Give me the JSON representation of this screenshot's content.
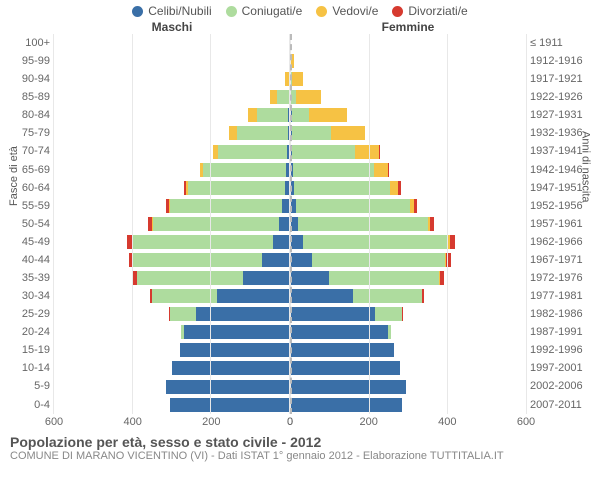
{
  "legend": [
    {
      "label": "Celibi/Nubili",
      "color": "#3a6fa7"
    },
    {
      "label": "Coniugati/e",
      "color": "#aedc9e"
    },
    {
      "label": "Vedovi/e",
      "color": "#f6c244"
    },
    {
      "label": "Divorziati/e",
      "color": "#d63a2f"
    }
  ],
  "header_male": "Maschi",
  "header_female": "Femmine",
  "axis_left_title": "Fasce di età",
  "axis_right_title": "Anni di nascita",
  "age_labels": [
    "100+",
    "95-99",
    "90-94",
    "85-89",
    "80-84",
    "75-79",
    "70-74",
    "65-69",
    "60-64",
    "55-59",
    "50-54",
    "45-49",
    "40-44",
    "35-39",
    "30-34",
    "25-29",
    "20-24",
    "15-19",
    "10-14",
    "5-9",
    "0-4"
  ],
  "year_labels": [
    "≤ 1911",
    "1912-1916",
    "1917-1921",
    "1922-1926",
    "1927-1931",
    "1932-1936",
    "1937-1941",
    "1942-1946",
    "1947-1951",
    "1952-1956",
    "1957-1961",
    "1962-1966",
    "1967-1971",
    "1972-1976",
    "1977-1981",
    "1982-1986",
    "1987-1991",
    "1992-1996",
    "1997-2001",
    "2002-2006",
    "2007-2011"
  ],
  "x_max": 600,
  "x_ticks": [
    0,
    200,
    400,
    600
  ],
  "colors": {
    "celibi": "#3a6fa7",
    "coniugati": "#aedc9e",
    "vedovi": "#f6c244",
    "divorziati": "#d63a2f",
    "grid": "#e8e8e8",
    "centerline": "#bbbbbb"
  },
  "male": [
    {
      "c": 0,
      "m": 0,
      "v": 0,
      "d": 0
    },
    {
      "c": 0,
      "m": 0,
      "v": 3,
      "d": 0
    },
    {
      "c": 1,
      "m": 2,
      "v": 11,
      "d": 0
    },
    {
      "c": 3,
      "m": 30,
      "v": 18,
      "d": 0
    },
    {
      "c": 4,
      "m": 80,
      "v": 22,
      "d": 0
    },
    {
      "c": 6,
      "m": 130,
      "v": 18,
      "d": 0
    },
    {
      "c": 8,
      "m": 175,
      "v": 14,
      "d": 0
    },
    {
      "c": 10,
      "m": 210,
      "v": 8,
      "d": 2
    },
    {
      "c": 14,
      "m": 245,
      "v": 5,
      "d": 6
    },
    {
      "c": 20,
      "m": 285,
      "v": 3,
      "d": 8
    },
    {
      "c": 28,
      "m": 320,
      "v": 2,
      "d": 10
    },
    {
      "c": 42,
      "m": 360,
      "v": 1,
      "d": 12
    },
    {
      "c": 70,
      "m": 330,
      "v": 0,
      "d": 10
    },
    {
      "c": 120,
      "m": 270,
      "v": 0,
      "d": 8
    },
    {
      "c": 185,
      "m": 165,
      "v": 0,
      "d": 5
    },
    {
      "c": 240,
      "m": 65,
      "v": 0,
      "d": 2
    },
    {
      "c": 270,
      "m": 6,
      "v": 0,
      "d": 0
    },
    {
      "c": 280,
      "m": 0,
      "v": 0,
      "d": 0
    },
    {
      "c": 300,
      "m": 0,
      "v": 0,
      "d": 0
    },
    {
      "c": 315,
      "m": 0,
      "v": 0,
      "d": 0
    },
    {
      "c": 305,
      "m": 0,
      "v": 0,
      "d": 0
    }
  ],
  "female": [
    {
      "c": 1,
      "m": 0,
      "v": 2,
      "d": 0
    },
    {
      "c": 1,
      "m": 0,
      "v": 10,
      "d": 0
    },
    {
      "c": 2,
      "m": 2,
      "v": 30,
      "d": 0
    },
    {
      "c": 3,
      "m": 12,
      "v": 65,
      "d": 0
    },
    {
      "c": 4,
      "m": 45,
      "v": 95,
      "d": 0
    },
    {
      "c": 5,
      "m": 100,
      "v": 85,
      "d": 0
    },
    {
      "c": 6,
      "m": 160,
      "v": 60,
      "d": 2
    },
    {
      "c": 8,
      "m": 205,
      "v": 35,
      "d": 4
    },
    {
      "c": 10,
      "m": 245,
      "v": 20,
      "d": 6
    },
    {
      "c": 14,
      "m": 290,
      "v": 12,
      "d": 8
    },
    {
      "c": 20,
      "m": 330,
      "v": 6,
      "d": 10
    },
    {
      "c": 32,
      "m": 370,
      "v": 4,
      "d": 14
    },
    {
      "c": 55,
      "m": 340,
      "v": 2,
      "d": 12
    },
    {
      "c": 100,
      "m": 280,
      "v": 1,
      "d": 10
    },
    {
      "c": 160,
      "m": 175,
      "v": 0,
      "d": 6
    },
    {
      "c": 215,
      "m": 70,
      "v": 0,
      "d": 3
    },
    {
      "c": 250,
      "m": 8,
      "v": 0,
      "d": 0
    },
    {
      "c": 265,
      "m": 0,
      "v": 0,
      "d": 0
    },
    {
      "c": 280,
      "m": 0,
      "v": 0,
      "d": 0
    },
    {
      "c": 295,
      "m": 0,
      "v": 0,
      "d": 0
    },
    {
      "c": 285,
      "m": 0,
      "v": 0,
      "d": 0
    }
  ],
  "title": "Popolazione per età, sesso e stato civile - 2012",
  "subtitle": "COMUNE DI MARANO VICENTINO (VI) - Dati ISTAT 1° gennaio 2012 - Elaborazione TUTTITALIA.IT"
}
